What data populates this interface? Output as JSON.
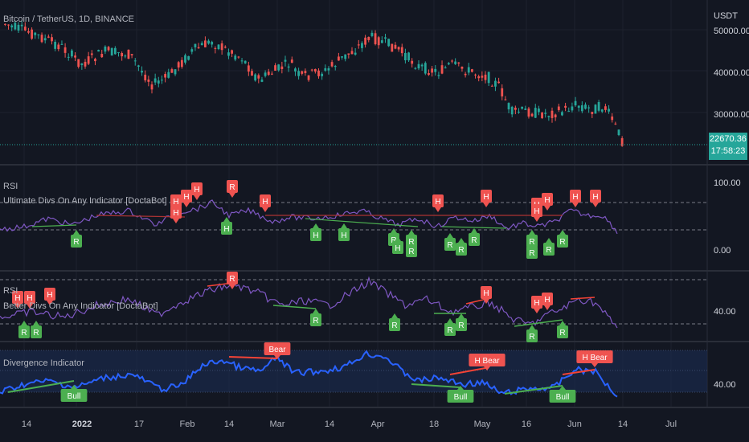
{
  "colors": {
    "bg": "#131722",
    "grid": "#1e222d",
    "up": "#26a69a",
    "down": "#ef5350",
    "rsi": "#7e57c2",
    "osc": "#2962ff",
    "bull": "#4caf50",
    "bear": "#f44336",
    "text": "#b2b5be"
  },
  "header": {
    "symbol": "Bitcoin / TetherUS, 1D, BINANCE",
    "currency": "USDT"
  },
  "price_axis": {
    "labels": [
      "50000.00",
      "40000.00",
      "30000.00"
    ]
  },
  "price_tag": {
    "price": "22670.36",
    "countdown": "17:58:23"
  },
  "panes": [
    {
      "title": "RSI",
      "subtitle": "Ultimate Divs On Any Indicator [DoctaBot]",
      "axis": [
        "100.00",
        "0.00"
      ]
    },
    {
      "title": "RSI",
      "subtitle": "Better Divs On Any Indicator [DoctaBot]",
      "axis": [
        "40.00"
      ]
    },
    {
      "title": "Divergence Indicator",
      "subtitle": "",
      "axis": [
        "40.00"
      ]
    }
  ],
  "time_axis": {
    "labels": [
      "14",
      "2022",
      "17",
      "Feb",
      "14",
      "Mar",
      "14",
      "Apr",
      "18",
      "May",
      "16",
      "Jun",
      "14",
      "Jul"
    ]
  },
  "markers": {
    "pane1_bear": [
      "H",
      "H",
      "H",
      "H",
      "R",
      "H",
      "H",
      "H",
      "H",
      "H",
      "H",
      "H",
      "H"
    ],
    "pane1_bull": [
      "R",
      "H",
      "H",
      "H",
      "R",
      "H",
      "R",
      "R",
      "R",
      "R",
      "R",
      "R",
      "R",
      "R",
      "R"
    ],
    "pane2_bear": [
      "H",
      "R",
      "H",
      "H",
      "H",
      "H",
      "H"
    ],
    "pane2_bull": [
      "R",
      "R",
      "R",
      "R",
      "R",
      "R",
      "R",
      "R"
    ],
    "pane3_bull": [
      "Bull",
      "Bull",
      "Bull"
    ],
    "pane3_bear": [
      "Bear",
      "H Bear",
      "H Bear"
    ]
  }
}
